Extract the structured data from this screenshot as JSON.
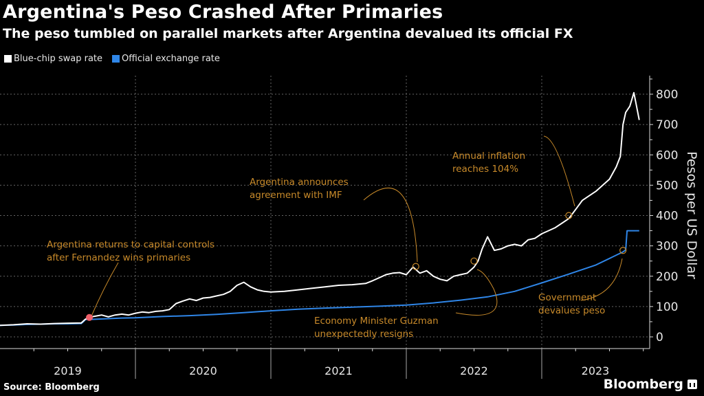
{
  "header": {
    "title": "Argentina's Peso Crashed After Primaries",
    "subtitle": "The peso tumbled on parallel markets after Argentina devalued its official FX"
  },
  "legend": [
    {
      "label": "Blue-chip swap rate",
      "color": "#ffffff"
    },
    {
      "label": "Official exchange rate",
      "color": "#2f86e8"
    }
  ],
  "footer": {
    "source": "Source: Bloomberg",
    "brand": "Bloomberg"
  },
  "colors": {
    "background": "#000000",
    "annotation": "#c88a2a",
    "highlight_dot": "#f0606a",
    "grid": "#666666"
  },
  "chart_data": {
    "type": "line",
    "title": "Argentina's Peso Crashed After Primaries",
    "subtitle": "The peso tumbled on parallel markets after Argentina devalued its official FX",
    "xlabel": "",
    "ylabel": "Pesos per US Dollar",
    "ylim": [
      0,
      800
    ],
    "yticks": [
      0,
      100,
      200,
      300,
      400,
      500,
      600,
      700,
      800
    ],
    "xlim": [
      2019.0,
      2023.72
    ],
    "xticks": [
      "2019",
      "2020",
      "2021",
      "2022",
      "2023"
    ],
    "grid": true,
    "legend_position": "top-left",
    "y_axis_side": "right",
    "series": [
      {
        "name": "Blue-chip swap rate",
        "color": "#ffffff",
        "x": [
          2019.0,
          2019.1,
          2019.2,
          2019.3,
          2019.4,
          2019.5,
          2019.6,
          2019.63,
          2019.66,
          2019.7,
          2019.75,
          2019.8,
          2019.85,
          2019.9,
          2019.95,
          2020.0,
          2020.05,
          2020.1,
          2020.15,
          2020.2,
          2020.25,
          2020.3,
          2020.35,
          2020.4,
          2020.45,
          2020.5,
          2020.55,
          2020.6,
          2020.65,
          2020.7,
          2020.75,
          2020.8,
          2020.85,
          2020.9,
          2020.95,
          2021.0,
          2021.1,
          2021.2,
          2021.3,
          2021.4,
          2021.5,
          2021.6,
          2021.7,
          2021.75,
          2021.8,
          2021.85,
          2021.9,
          2021.95,
          2022.0,
          2022.05,
          2022.1,
          2022.15,
          2022.2,
          2022.25,
          2022.3,
          2022.35,
          2022.4,
          2022.45,
          2022.5,
          2022.53,
          2022.56,
          2022.6,
          2022.65,
          2022.7,
          2022.75,
          2022.8,
          2022.85,
          2022.9,
          2022.95,
          2023.0,
          2023.05,
          2023.1,
          2023.15,
          2023.2,
          2023.25,
          2023.3,
          2023.35,
          2023.4,
          2023.45,
          2023.5,
          2023.55,
          2023.58,
          2023.6,
          2023.62,
          2023.65,
          2023.68,
          2023.7,
          2023.72
        ],
        "values": [
          38,
          40,
          43,
          42,
          44,
          45,
          46,
          58,
          65,
          68,
          72,
          66,
          72,
          75,
          72,
          78,
          82,
          80,
          84,
          86,
          90,
          110,
          118,
          125,
          120,
          128,
          130,
          135,
          140,
          150,
          170,
          180,
          165,
          155,
          150,
          148,
          150,
          155,
          160,
          165,
          170,
          172,
          176,
          185,
          195,
          205,
          210,
          212,
          205,
          230,
          210,
          218,
          200,
          190,
          185,
          200,
          205,
          210,
          230,
          250,
          290,
          330,
          285,
          290,
          300,
          305,
          300,
          320,
          325,
          340,
          350,
          360,
          375,
          390,
          420,
          450,
          465,
          480,
          500,
          520,
          560,
          595,
          700,
          740,
          760,
          805,
          760,
          715
        ]
      },
      {
        "name": "Official exchange rate",
        "color": "#2f86e8",
        "x": [
          2019.0,
          2019.1,
          2019.2,
          2019.3,
          2019.4,
          2019.5,
          2019.6,
          2019.62,
          2019.63,
          2019.7,
          2019.8,
          2019.9,
          2020.0,
          2020.2,
          2020.4,
          2020.6,
          2020.8,
          2021.0,
          2021.2,
          2021.4,
          2021.6,
          2021.8,
          2022.0,
          2022.2,
          2022.4,
          2022.6,
          2022.8,
          2023.0,
          2023.2,
          2023.4,
          2023.6,
          2023.62,
          2023.63,
          2023.72
        ],
        "values": [
          38,
          39,
          41,
          42,
          43,
          43,
          44,
          52,
          57,
          58,
          60,
          62,
          63,
          67,
          70,
          74,
          80,
          86,
          91,
          95,
          98,
          101,
          105,
          112,
          121,
          132,
          150,
          178,
          207,
          237,
          280,
          287,
          350,
          350
        ]
      }
    ],
    "annotations": [
      {
        "text": [
          "Argentina returns to capital controls",
          "after Fernandez wins primaries"
        ],
        "target_x": 2019.66,
        "target_y": 64
      },
      {
        "text": [
          "Argentina announces",
          "agreement with IMF"
        ],
        "target_x": 2022.07,
        "target_y": 232
      },
      {
        "text": [
          "Economy Minister Guzman",
          "unexpectedly resigns"
        ],
        "target_x": 2022.5,
        "target_y": 250
      },
      {
        "text": [
          "Annual inflation",
          "reaches 104%"
        ],
        "target_x": 2023.2,
        "target_y": 400
      },
      {
        "text": [
          "Government",
          "devalues peso"
        ],
        "target_x": 2023.6,
        "target_y": 285
      }
    ]
  }
}
